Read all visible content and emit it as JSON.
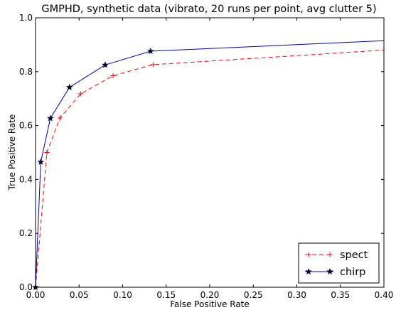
{
  "chart_data": {
    "type": "line",
    "title": "GMPHD, synthetic data (vibrato, 20 runs per point, avg clutter 5)",
    "xlabel": "False Positive Rate",
    "ylabel": "True Positive Rate",
    "xlim": [
      0.0,
      0.4
    ],
    "ylim": [
      0.0,
      1.0
    ],
    "xticks": [
      "0.00",
      "0.05",
      "0.10",
      "0.15",
      "0.20",
      "0.25",
      "0.30",
      "0.35",
      "0.40"
    ],
    "yticks": [
      "0.0",
      "0.2",
      "0.4",
      "0.6",
      "0.8",
      "1.0"
    ],
    "grid": false,
    "legend_position": "bottom-right",
    "series": [
      {
        "name": "spect",
        "color": "#ff0000",
        "line_style": "dashed",
        "marker": "plus",
        "x": [
          0.0,
          0.013,
          0.028,
          0.052,
          0.089,
          0.135,
          0.4
        ],
        "y": [
          0.0,
          0.5,
          0.628,
          0.718,
          0.785,
          0.826,
          0.88
        ]
      },
      {
        "name": "chirp",
        "color": "#0000cc",
        "line_style": "solid",
        "marker": "star",
        "x": [
          0.0,
          0.006,
          0.017,
          0.039,
          0.08,
          0.132,
          0.4
        ],
        "y": [
          0.0,
          0.465,
          0.627,
          0.742,
          0.825,
          0.876,
          0.915
        ]
      }
    ]
  }
}
